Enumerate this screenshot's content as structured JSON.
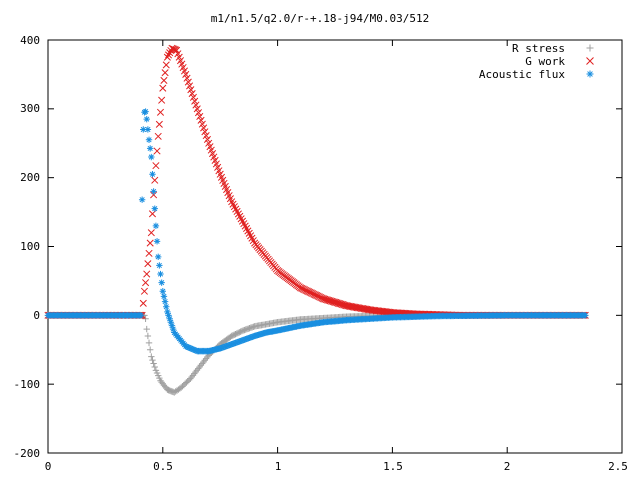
{
  "chart_data": {
    "type": "scatter",
    "title": "m1/n1.5/q2.0/r-+.18-j94/M0.03/512",
    "xlabel": "",
    "ylabel": "",
    "xlim": [
      0,
      2.5
    ],
    "ylim": [
      -200,
      400
    ],
    "x_ticks": [
      "0",
      "0.5",
      "1",
      "1.5",
      "2",
      "2.5"
    ],
    "y_ticks": [
      "-200",
      "-100",
      "0",
      "100",
      "200",
      "300",
      "400"
    ],
    "grid": false,
    "legend_position": "top-right",
    "series": [
      {
        "name": "R stress",
        "marker": "plus",
        "color": "#a0a0a0",
        "x": [
          0.0,
          0.2,
          0.42,
          0.425,
          0.43,
          0.44,
          0.45,
          0.47,
          0.49,
          0.52,
          0.55,
          0.58,
          0.62,
          0.66,
          0.7,
          0.75,
          0.8,
          0.85,
          0.9,
          1.0,
          1.1,
          1.2,
          1.3,
          1.4,
          1.5,
          1.7,
          2.0,
          2.2,
          2.34
        ],
        "y": [
          0,
          0,
          0,
          -5,
          -20,
          -40,
          -60,
          -80,
          -95,
          -108,
          -112,
          -105,
          -92,
          -75,
          -58,
          -42,
          -30,
          -22,
          -16,
          -10,
          -6,
          -4,
          -2,
          -1,
          0,
          0,
          0,
          0,
          0
        ]
      },
      {
        "name": "G work",
        "marker": "cross",
        "color": "#e02020",
        "x": [
          0.0,
          0.2,
          0.41,
          0.42,
          0.43,
          0.44,
          0.45,
          0.46,
          0.48,
          0.5,
          0.52,
          0.54,
          0.56,
          0.6,
          0.65,
          0.7,
          0.75,
          0.8,
          0.9,
          1.0,
          1.1,
          1.2,
          1.3,
          1.4,
          1.5,
          1.6,
          1.8,
          2.0,
          2.2,
          2.34
        ],
        "y": [
          0,
          0,
          0,
          35,
          60,
          90,
          120,
          175,
          260,
          330,
          375,
          388,
          385,
          350,
          300,
          250,
          205,
          165,
          105,
          65,
          40,
          24,
          14,
          8,
          4,
          2,
          0,
          0,
          0,
          0
        ]
      },
      {
        "name": "Acoustic flux",
        "marker": "star",
        "color": "#1a8fe0",
        "x": [
          0.0,
          0.2,
          0.405,
          0.41,
          0.415,
          0.42,
          0.425,
          0.43,
          0.435,
          0.44,
          0.45,
          0.46,
          0.47,
          0.48,
          0.5,
          0.52,
          0.55,
          0.6,
          0.65,
          0.7,
          0.75,
          0.8,
          0.85,
          0.9,
          0.95,
          1.0,
          1.1,
          1.2,
          1.3,
          1.4,
          1.5,
          1.7,
          2.0,
          2.2,
          2.34
        ],
        "y": [
          0,
          0,
          0,
          168,
          270,
          295,
          296,
          285,
          270,
          255,
          230,
          180,
          130,
          85,
          35,
          5,
          -25,
          -45,
          -52,
          -52,
          -48,
          -42,
          -36,
          -30,
          -25,
          -22,
          -15,
          -10,
          -7,
          -5,
          -3,
          -1,
          0,
          0,
          0
        ]
      }
    ]
  }
}
